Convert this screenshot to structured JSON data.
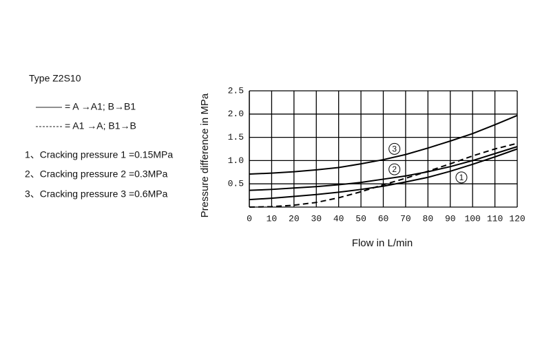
{
  "chart_data": {
    "type": "line",
    "xlabel": "Flow in L/min",
    "ylabel": "Pressure difference in MPa",
    "x": [
      0,
      10,
      20,
      30,
      40,
      50,
      60,
      70,
      80,
      90,
      100,
      110,
      120
    ],
    "xlim": [
      0,
      120
    ],
    "xticks": [
      0,
      10,
      20,
      30,
      40,
      50,
      60,
      70,
      80,
      90,
      100,
      110,
      120
    ],
    "ylim": [
      0,
      2.5
    ],
    "yticks": [
      0.5,
      {
        "value": 1,
        "label": "1.0"
      },
      1.5,
      {
        "value": 2,
        "label": "2.0"
      },
      2.5
    ],
    "grid": true,
    "series": [
      {
        "name": "3",
        "color": "#000000",
        "dash": "solid",
        "values": [
          0.71,
          0.73,
          0.76,
          0.8,
          0.85,
          0.93,
          1.02,
          1.13,
          1.27,
          1.42,
          1.58,
          1.77,
          1.97
        ]
      },
      {
        "name": "2",
        "color": "#000000",
        "dash": "solid",
        "values": [
          0.36,
          0.38,
          0.41,
          0.44,
          0.48,
          0.53,
          0.6,
          0.67,
          0.76,
          0.87,
          1.0,
          1.15,
          1.3
        ]
      },
      {
        "name": "1",
        "color": "#000000",
        "dash": "solid",
        "values": [
          0.16,
          0.19,
          0.23,
          0.27,
          0.32,
          0.38,
          0.45,
          0.54,
          0.64,
          0.77,
          0.92,
          1.08,
          1.25
        ]
      },
      {
        "color": "#000000",
        "dash": "dashed",
        "values": [
          0,
          0.01,
          0.04,
          0.1,
          0.2,
          0.33,
          0.48,
          0.62,
          0.77,
          0.93,
          1.1,
          1.25,
          1.37
        ]
      }
    ]
  },
  "side_text": {
    "title": "Type Z2S10",
    "legend": [
      "= A →A1; B→B1",
      "= A1 →A; B1→B"
    ],
    "notes": [
      "1、Cracking pressure 1 =0.15MPa",
      "2、Cracking pressure 2 =0.3MPa",
      "3、Cracking pressure 3 =0.6MPa"
    ]
  }
}
